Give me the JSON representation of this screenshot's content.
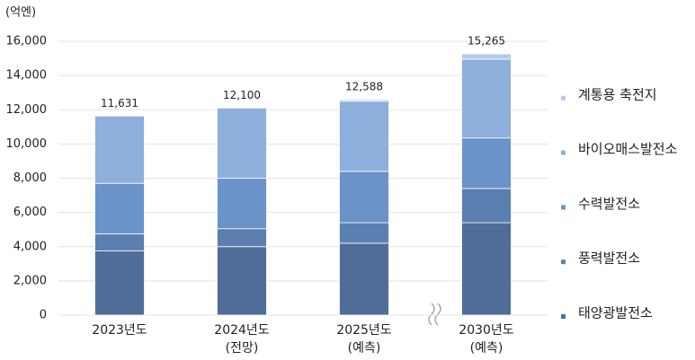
{
  "chart_data": {
    "type": "stacked_bar",
    "unit_label": "(억엔)",
    "categories": [
      "2023년도",
      "2024년도",
      "2025년도",
      "2030년도"
    ],
    "category_notes": [
      null,
      "(전망)",
      "(예측)",
      "(예측)"
    ],
    "series": [
      {
        "name": "태양광발전소",
        "color": "#4f6d98",
        "values": [
          3750,
          4000,
          4200,
          5400
        ]
      },
      {
        "name": "풍력발전소",
        "color": "#5b7fb0",
        "values": [
          1000,
          1050,
          1200,
          2000
        ]
      },
      {
        "name": "수력발전소",
        "color": "#6a93c9",
        "values": [
          2950,
          2950,
          3000,
          2950
        ]
      },
      {
        "name": "바이오매스발전소",
        "color": "#8eaedb",
        "values": [
          3931,
          4100,
          4100,
          4600
        ]
      },
      {
        "name": "계통용 축전지",
        "color": "#b4cbe9",
        "values": [
          0,
          0,
          88,
          315
        ]
      }
    ],
    "totals": {
      "values": [
        11631,
        12100,
        12588,
        15265
      ],
      "value_labels": [
        "11,631",
        "12,100",
        "12,588",
        "15,265"
      ]
    },
    "ylim": [
      0,
      16000
    ],
    "yticks": [
      0,
      {
        "value": 2000,
        "label": "2,000"
      },
      {
        "value": 4000,
        "label": "4,000"
      },
      {
        "value": 6000,
        "label": "6,000"
      },
      {
        "value": 8000,
        "label": "8,000"
      },
      {
        "value": 10000,
        "label": "10,000"
      },
      {
        "value": 12000,
        "label": "12,000"
      },
      {
        "value": 14000,
        "label": "14,000"
      },
      {
        "value": 16000,
        "label": "16,000"
      }
    ],
    "grid": true
  }
}
